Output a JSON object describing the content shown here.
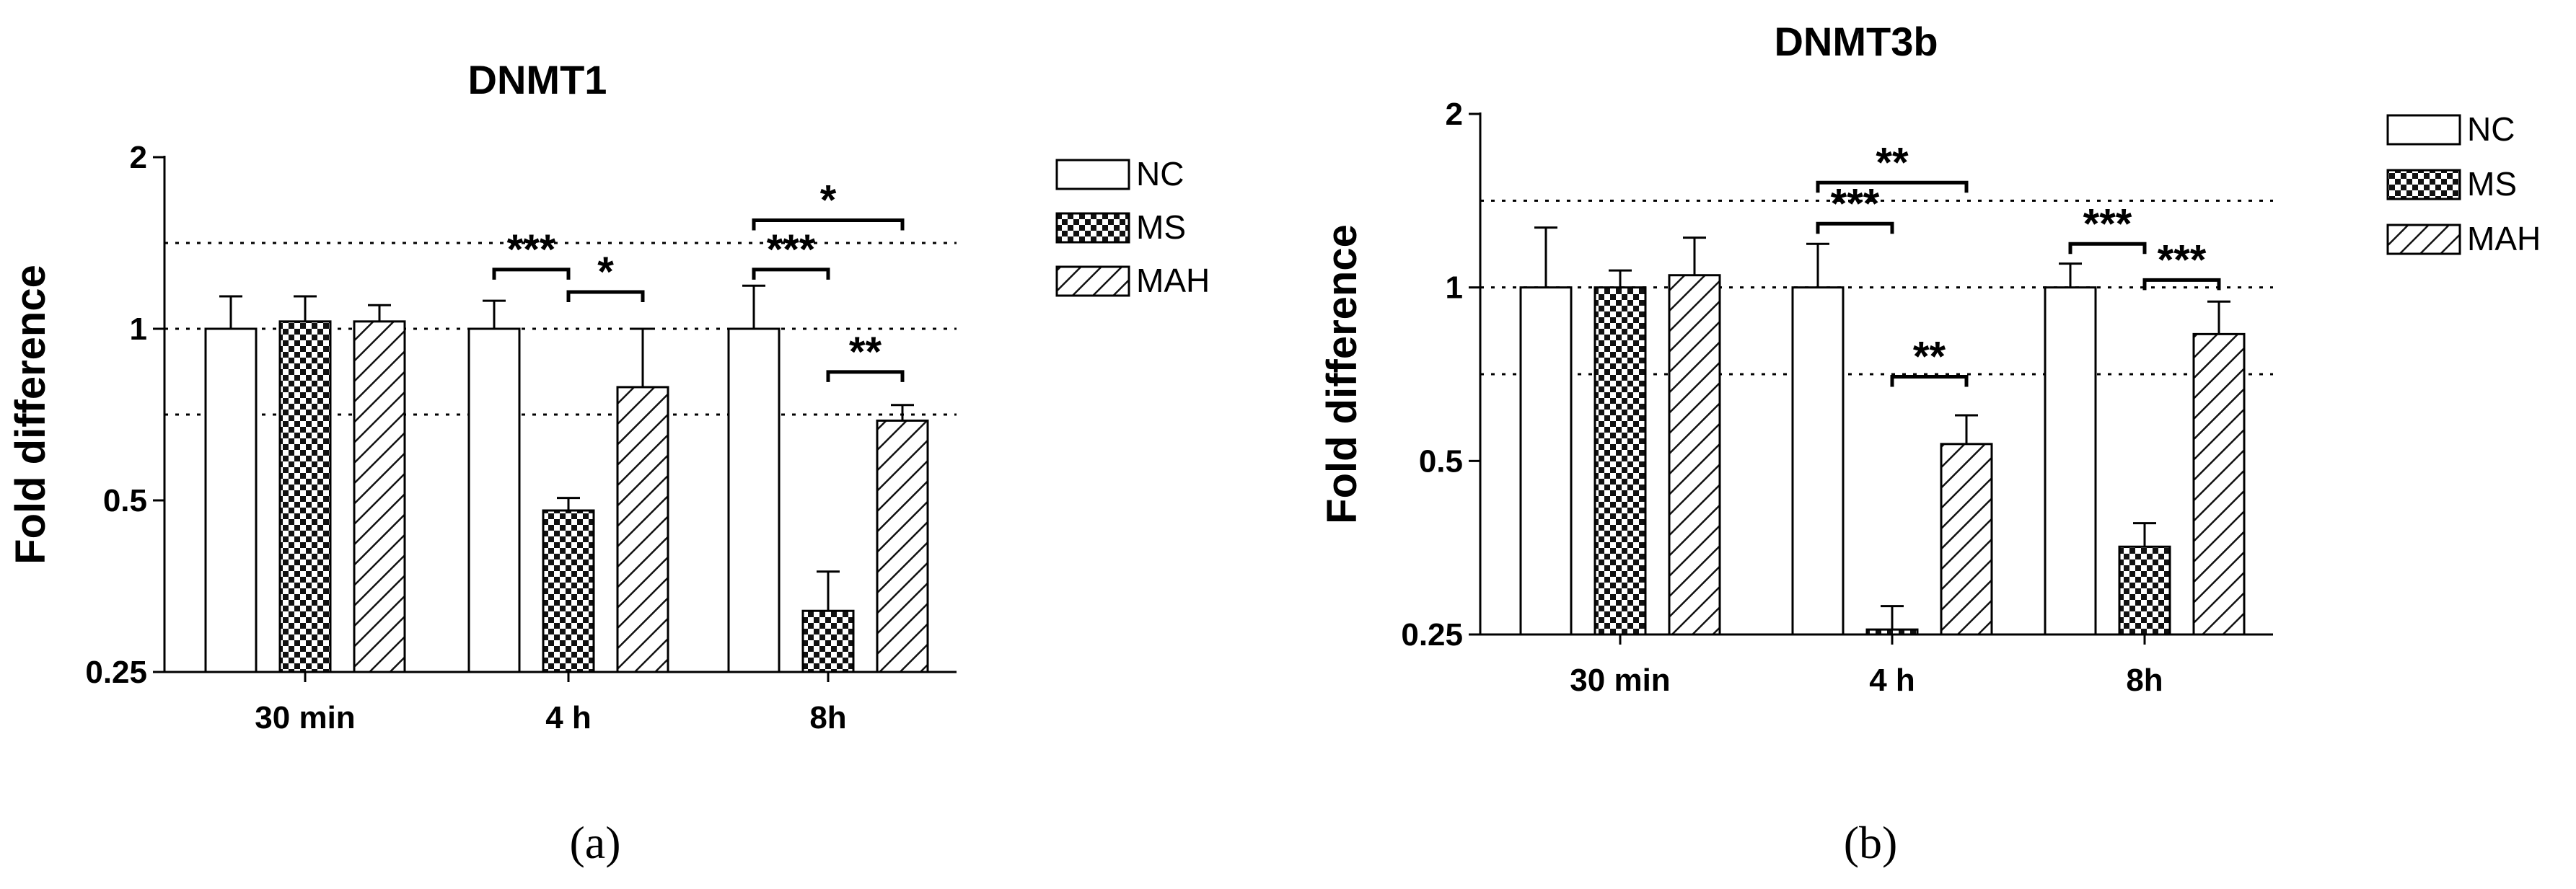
{
  "chart_data": [
    {
      "type": "bar",
      "panel_label": "(a)",
      "title": "DNMT1",
      "ylabel": "Fold difference",
      "xlabel": "",
      "yscale": "log2",
      "ylim": [
        0.25,
        2
      ],
      "yticks": [
        {
          "value": 0.25,
          "label": "0.25"
        },
        {
          "value": 0.5,
          "label": "0.5"
        },
        {
          "value": 1,
          "label": "1"
        },
        {
          "value": 2,
          "label": "2"
        }
      ],
      "reference_lines": [
        1.414,
        1,
        0.707
      ],
      "categories": [
        "30 min",
        "4 h",
        "8h"
      ],
      "series": [
        {
          "name": "NC",
          "pattern": "none",
          "values": [
            1.0,
            1.0,
            1.0
          ],
          "error": [
            1.14,
            1.12,
            1.19
          ]
        },
        {
          "name": "MS",
          "pattern": "checker",
          "values": [
            1.03,
            0.48,
            0.32
          ],
          "error": [
            1.14,
            0.505,
            0.375
          ]
        },
        {
          "name": "MAH",
          "pattern": "hatch",
          "values": [
            1.03,
            0.79,
            0.69
          ],
          "error": [
            1.1,
            1.0,
            0.735
          ]
        }
      ],
      "significance": [
        {
          "group": 1,
          "from": 0,
          "to": 1,
          "y": 1.27,
          "label": "***"
        },
        {
          "group": 1,
          "from": 1,
          "to": 2,
          "y": 1.16,
          "label": "*"
        },
        {
          "group": 2,
          "from": 0,
          "to": 1,
          "y": 1.27,
          "label": "***"
        },
        {
          "group": 2,
          "from": 0,
          "to": 2,
          "y": 1.55,
          "label": "*"
        },
        {
          "group": 2,
          "from": 1,
          "to": 2,
          "y": 0.84,
          "label": "**"
        }
      ],
      "legend": {
        "position": "right"
      },
      "grid": false
    },
    {
      "type": "bar",
      "panel_label": "(b)",
      "title": "DNMT3b",
      "ylabel": "Fold difference",
      "xlabel": "",
      "yscale": "log2",
      "ylim": [
        0.25,
        2
      ],
      "yticks": [
        {
          "value": 0.25,
          "label": "0.25"
        },
        {
          "value": 0.5,
          "label": "0.5"
        },
        {
          "value": 1,
          "label": "1"
        },
        {
          "value": 2,
          "label": "2"
        }
      ],
      "reference_lines": [
        1.414,
        1,
        0.707
      ],
      "categories": [
        "30 min",
        "4 h",
        "8h"
      ],
      "series": [
        {
          "name": "NC",
          "pattern": "none",
          "values": [
            1.0,
            1.0,
            1.0
          ],
          "error": [
            1.27,
            1.19,
            1.1
          ]
        },
        {
          "name": "MS",
          "pattern": "checker",
          "values": [
            1.0,
            0.255,
            0.355
          ],
          "error": [
            1.07,
            0.28,
            0.39
          ]
        },
        {
          "name": "MAH",
          "pattern": "hatch",
          "values": [
            1.05,
            0.535,
            0.83
          ],
          "error": [
            1.22,
            0.6,
            0.945
          ]
        }
      ],
      "significance": [
        {
          "group": 1,
          "from": 0,
          "to": 1,
          "y": 1.29,
          "label": "***"
        },
        {
          "group": 1,
          "from": 0,
          "to": 2,
          "y": 1.52,
          "label": "**"
        },
        {
          "group": 1,
          "from": 1,
          "to": 2,
          "y": 0.7,
          "label": "**"
        },
        {
          "group": 2,
          "from": 0,
          "to": 1,
          "y": 1.19,
          "label": "***"
        },
        {
          "group": 2,
          "from": 1,
          "to": 2,
          "y": 1.03,
          "label": "***"
        }
      ],
      "legend": {
        "position": "right"
      },
      "grid": false
    }
  ]
}
